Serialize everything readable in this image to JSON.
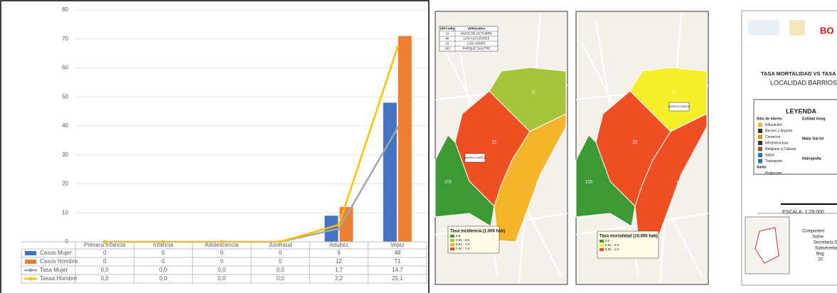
{
  "chart_data": {
    "type": "bar",
    "categories": [
      "Primera Infancia",
      "Infancia",
      "Adolescencia",
      "Juventud",
      "Adultez",
      "Vejez"
    ],
    "series": [
      {
        "name": "Casos Mujer",
        "color": "#4472c4",
        "values": [
          0,
          0,
          0,
          0,
          9,
          48
        ]
      },
      {
        "name": "Casos Hombre",
        "color": "#ed7d31",
        "values": [
          0,
          0,
          0,
          0,
          12,
          71
        ]
      },
      {
        "name": "Tasa Mujer",
        "type": "line",
        "axis": "y2",
        "color": "#a5a5a5",
        "values": [
          0,
          0,
          0,
          0,
          1.7,
          14.7
        ],
        "value_labels": [
          "0,0",
          "0,0",
          "0,0",
          "0,0",
          "1,7",
          "14,7"
        ]
      },
      {
        "name": "Tasaa Hombre",
        "type": "line",
        "axis": "y2",
        "color": "#ffc000",
        "values": [
          0,
          0,
          0,
          0,
          2.2,
          25.1
        ],
        "value_labels": [
          "0,0",
          "0,0",
          "0,0",
          "0,0",
          "2,2",
          "25,1"
        ]
      }
    ],
    "ylim": [
      0,
      80
    ],
    "yticks": [
      0,
      10,
      20,
      30,
      40,
      50,
      60,
      70,
      80
    ],
    "y2lim": [
      0,
      30
    ],
    "grid": true
  },
  "maps": [
    {
      "table": {
        "header": [
          "UPICodig",
          "UPINombre"
        ],
        "rows": [
          [
            "22",
            "DOCE DE OCTUBRE"
          ],
          [
            "98",
            "LOS ALCAZARES"
          ],
          [
            "21",
            "LOS ANDES"
          ],
          [
            "103",
            "PARQUE SALITRE"
          ]
        ]
      },
      "locality_label": "BARRIOS UNIDOS",
      "regions": [
        {
          "label": "21",
          "color": "#a6c43a"
        },
        {
          "label": "22",
          "color": "#f04e23"
        },
        {
          "label": "103",
          "color": "#3c9a35"
        },
        {
          "label": "98",
          "color": "#f5b52a"
        }
      ],
      "legend": {
        "title": "Tasa incidencia (1.000 hab)",
        "items": [
          {
            "label": "2,8",
            "color": "#3c9a35"
          },
          {
            "label": "2,91 - 6,5",
            "color": "#a6c43a"
          },
          {
            "label": "6,51 - 7,0",
            "color": "#f5b52a"
          },
          {
            "label": "7,01 - 7,8",
            "color": "#f04e23"
          }
        ]
      }
    },
    {
      "locality_label": "BARRIOS UNIDOS",
      "regions": [
        {
          "label": "21",
          "color": "#f5ee2a"
        },
        {
          "label": "22",
          "color": "#f04e23"
        },
        {
          "label": "103",
          "color": "#3c9a35"
        },
        {
          "label": "98",
          "color": "#f04e23"
        }
      ],
      "legend": {
        "title": "Tasa mortalidad (10.000 hab)",
        "items": [
          {
            "label": "0,0",
            "color": "#3c9a35"
          },
          {
            "label": "0,01 - 0,9",
            "color": "#f5ee2a"
          },
          {
            "label": "0,91 - 1,0",
            "color": "#f04e23"
          }
        ]
      }
    }
  ],
  "legend_panel": {
    "logo_text": "BO",
    "title": [
      "TASA MORTALIDAD VS TASA INC",
      "LOCALIDAD BARRIOS UN"
    ],
    "legend_title": "LEYENDA",
    "left_items": [
      "Sitio de Interés",
      "Educación",
      "Recreo y deporte",
      "Comercio",
      "Infraestructura",
      "Religioso y Cultural",
      "Salud",
      "Transporte",
      "Suelo",
      "Protección"
    ],
    "right_items": [
      "Entidad Geog",
      "Malla Vial Int",
      "Hidrografía"
    ],
    "scale": "ESCALA: 1:29.000",
    "credits": [
      "Component",
      "Subre",
      "Secretaría Di",
      "Subsecretaría d",
      "Bog",
      "20"
    ]
  }
}
